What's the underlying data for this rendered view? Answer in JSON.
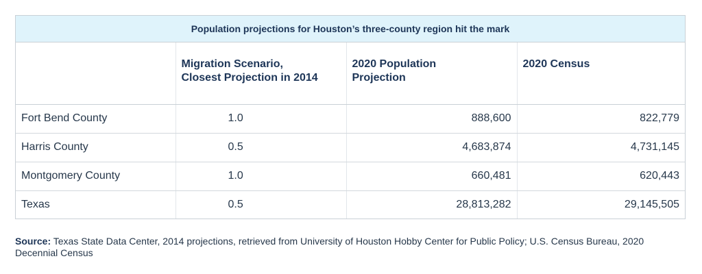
{
  "table": {
    "title": "Population projections for Houston’s three-county region hit the mark",
    "headers": [
      "",
      "Migration Scenario,\nClosest Projection in 2014",
      "2020 Population\nProjection",
      "2020 Census"
    ],
    "rows": [
      {
        "county": "Fort Bend County",
        "scenario": "1.0",
        "projection": "888,600",
        "census": "822,779"
      },
      {
        "county": "Harris County",
        "scenario": "0.5",
        "projection": "4,683,874",
        "census": "4,731,145"
      },
      {
        "county": "Montgomery County",
        "scenario": "1.0",
        "projection": "660,481",
        "census": "620,443"
      },
      {
        "county": "Texas",
        "scenario": "0.5",
        "projection": "28,813,282",
        "census": "29,145,505"
      }
    ]
  },
  "source": {
    "label": "Source:",
    "text": "Texas State Data Center, 2014 projections, retrieved from University of Houston Hobby Center for Public Policy; U.S. Census Bureau, 2020 Decennial Census"
  }
}
